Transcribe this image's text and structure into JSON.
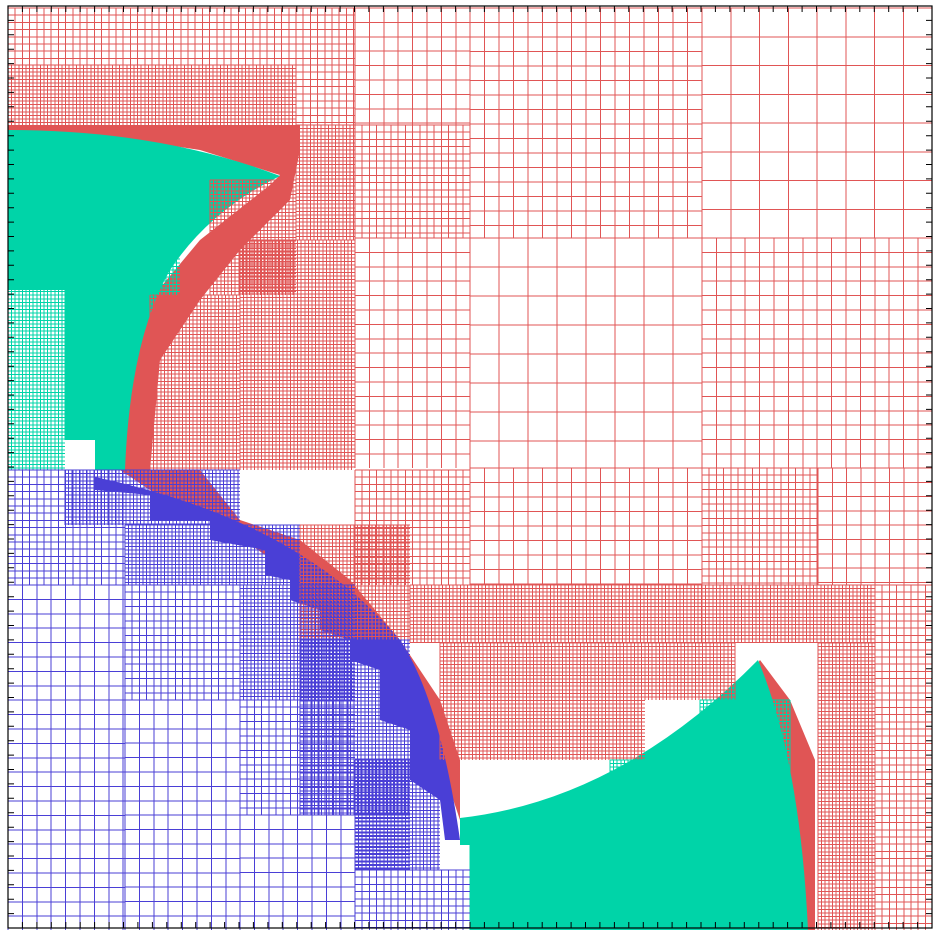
{
  "figure": {
    "description_free": true,
    "colors": {
      "region_a": "#e05555",
      "region_b": "#00d4a8",
      "region_c": "#4a3fd6",
      "axis": "#000000",
      "background": "#ffffff"
    },
    "regions": [
      "region_a",
      "region_b",
      "region_c"
    ],
    "refinement_levels": [
      1,
      2,
      3,
      4,
      5
    ]
  }
}
